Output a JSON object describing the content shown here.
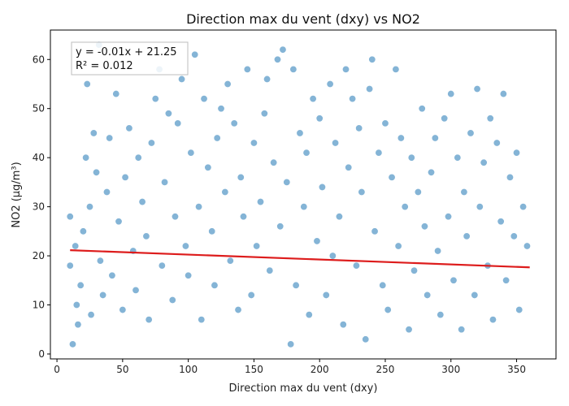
{
  "chart_data": {
    "type": "scatter",
    "title": "Direction max du vent (dxy) vs NO2",
    "xlabel": "Direction max du vent (dxy)",
    "ylabel": "NO2 (µg/m³)",
    "xlim": [
      -5,
      380
    ],
    "ylim": [
      -1,
      66
    ],
    "xticks": [
      0,
      50,
      100,
      150,
      200,
      250,
      300,
      350
    ],
    "yticks": [
      0,
      10,
      20,
      30,
      40,
      50,
      60
    ],
    "grid": false,
    "point_color": "#1f77b4",
    "regression_color": "#dd1c1c",
    "regression": {
      "slope": -0.01,
      "intercept": 21.25,
      "x_range": [
        10,
        360
      ]
    },
    "annotation_lines": [
      "y = -0.01x + 21.25",
      "R² = 0.012"
    ],
    "annotation_position": "top-left",
    "points": [
      [
        10,
        28
      ],
      [
        10,
        18
      ],
      [
        12,
        2
      ],
      [
        14,
        22
      ],
      [
        15,
        10
      ],
      [
        16,
        6
      ],
      [
        18,
        14
      ],
      [
        20,
        25
      ],
      [
        22,
        40
      ],
      [
        23,
        55
      ],
      [
        25,
        30
      ],
      [
        26,
        8
      ],
      [
        28,
        45
      ],
      [
        30,
        37
      ],
      [
        32,
        63
      ],
      [
        33,
        19
      ],
      [
        35,
        12
      ],
      [
        38,
        33
      ],
      [
        40,
        44
      ],
      [
        42,
        16
      ],
      [
        45,
        53
      ],
      [
        47,
        27
      ],
      [
        50,
        9
      ],
      [
        52,
        36
      ],
      [
        55,
        46
      ],
      [
        58,
        21
      ],
      [
        60,
        13
      ],
      [
        62,
        40
      ],
      [
        65,
        31
      ],
      [
        68,
        24
      ],
      [
        70,
        7
      ],
      [
        72,
        43
      ],
      [
        75,
        52
      ],
      [
        78,
        58
      ],
      [
        80,
        18
      ],
      [
        82,
        35
      ],
      [
        85,
        49
      ],
      [
        88,
        11
      ],
      [
        90,
        28
      ],
      [
        92,
        47
      ],
      [
        95,
        56
      ],
      [
        98,
        22
      ],
      [
        100,
        16
      ],
      [
        102,
        41
      ],
      [
        105,
        61
      ],
      [
        108,
        30
      ],
      [
        110,
        7
      ],
      [
        112,
        52
      ],
      [
        115,
        38
      ],
      [
        118,
        25
      ],
      [
        120,
        14
      ],
      [
        122,
        44
      ],
      [
        125,
        50
      ],
      [
        128,
        33
      ],
      [
        130,
        55
      ],
      [
        132,
        19
      ],
      [
        135,
        47
      ],
      [
        138,
        9
      ],
      [
        140,
        36
      ],
      [
        142,
        28
      ],
      [
        145,
        58
      ],
      [
        148,
        12
      ],
      [
        150,
        43
      ],
      [
        152,
        22
      ],
      [
        155,
        31
      ],
      [
        158,
        49
      ],
      [
        160,
        56
      ],
      [
        162,
        17
      ],
      [
        165,
        39
      ],
      [
        168,
        60
      ],
      [
        170,
        26
      ],
      [
        172,
        62
      ],
      [
        175,
        35
      ],
      [
        178,
        2
      ],
      [
        180,
        58
      ],
      [
        182,
        14
      ],
      [
        185,
        45
      ],
      [
        188,
        30
      ],
      [
        190,
        41
      ],
      [
        192,
        8
      ],
      [
        195,
        52
      ],
      [
        198,
        23
      ],
      [
        200,
        48
      ],
      [
        202,
        34
      ],
      [
        205,
        12
      ],
      [
        208,
        55
      ],
      [
        210,
        20
      ],
      [
        212,
        43
      ],
      [
        215,
        28
      ],
      [
        218,
        6
      ],
      [
        220,
        58
      ],
      [
        222,
        38
      ],
      [
        225,
        52
      ],
      [
        228,
        18
      ],
      [
        230,
        46
      ],
      [
        232,
        33
      ],
      [
        235,
        3
      ],
      [
        238,
        54
      ],
      [
        240,
        60
      ],
      [
        242,
        25
      ],
      [
        245,
        41
      ],
      [
        248,
        14
      ],
      [
        250,
        47
      ],
      [
        252,
        9
      ],
      [
        255,
        36
      ],
      [
        258,
        58
      ],
      [
        260,
        22
      ],
      [
        262,
        44
      ],
      [
        265,
        30
      ],
      [
        268,
        5
      ],
      [
        270,
        40
      ],
      [
        272,
        17
      ],
      [
        275,
        33
      ],
      [
        278,
        50
      ],
      [
        280,
        26
      ],
      [
        282,
        12
      ],
      [
        285,
        37
      ],
      [
        288,
        44
      ],
      [
        290,
        21
      ],
      [
        292,
        8
      ],
      [
        295,
        48
      ],
      [
        298,
        28
      ],
      [
        300,
        53
      ],
      [
        302,
        15
      ],
      [
        305,
        40
      ],
      [
        308,
        5
      ],
      [
        310,
        33
      ],
      [
        312,
        24
      ],
      [
        315,
        45
      ],
      [
        318,
        12
      ],
      [
        320,
        54
      ],
      [
        322,
        30
      ],
      [
        325,
        39
      ],
      [
        328,
        18
      ],
      [
        330,
        48
      ],
      [
        332,
        7
      ],
      [
        335,
        43
      ],
      [
        338,
        27
      ],
      [
        340,
        53
      ],
      [
        342,
        15
      ],
      [
        345,
        36
      ],
      [
        348,
        24
      ],
      [
        350,
        41
      ],
      [
        352,
        9
      ],
      [
        355,
        30
      ],
      [
        358,
        22
      ]
    ]
  }
}
